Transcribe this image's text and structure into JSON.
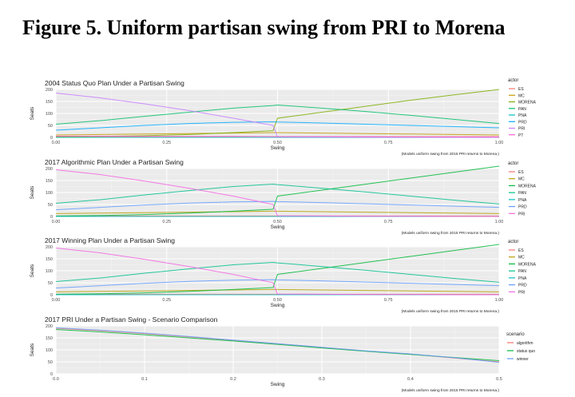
{
  "page": {
    "title": "Figure 5. Uniform partisan swing from PRI to Morena"
  },
  "chart_data": [
    {
      "type": "line",
      "title": "2004 Status Quo Plan Under a Partisan Swing",
      "xlabel": "Swing",
      "ylabel": "Seats",
      "xlim": [
        0,
        1
      ],
      "ylim": [
        0,
        200
      ],
      "xticks": [
        "0.00",
        "0.25",
        "0.50",
        "0.75",
        "1.00"
      ],
      "xtick_values": [
        0,
        0.25,
        0.5,
        0.75,
        1
      ],
      "yticks": [
        0,
        50,
        100,
        150,
        200
      ],
      "caption": "(Models uniform swing from 2015 PRI returns to Morena.)",
      "legend_title": "actor",
      "legend_position": "right",
      "grid": true,
      "x": [
        0,
        0.1,
        0.2,
        0.3,
        0.4,
        0.49,
        0.5,
        0.6,
        0.7,
        0.8,
        0.9,
        1.0
      ],
      "series": [
        {
          "name": "ES",
          "color": "#F8766D",
          "values": [
            3,
            3,
            3,
            3,
            3,
            3,
            3,
            3,
            3,
            3,
            3,
            3
          ]
        },
        {
          "name": "MC",
          "color": "#C49A00",
          "values": [
            10,
            12,
            14,
            16,
            18,
            20,
            20,
            18,
            16,
            14,
            12,
            10
          ]
        },
        {
          "name": "MORENA",
          "color": "#7CAE00",
          "values": [
            2,
            4,
            7,
            12,
            20,
            28,
            80,
            105,
            130,
            155,
            178,
            200
          ]
        },
        {
          "name": "PAN",
          "color": "#00BE67",
          "values": [
            55,
            70,
            88,
            105,
            122,
            133,
            135,
            122,
            108,
            92,
            75,
            58
          ]
        },
        {
          "name": "PNA",
          "color": "#00BFC4",
          "values": [
            0,
            0,
            0,
            0,
            0,
            0,
            0,
            0,
            0,
            0,
            0,
            0
          ]
        },
        {
          "name": "PRD",
          "color": "#00A9FF",
          "values": [
            30,
            40,
            50,
            58,
            63,
            65,
            64,
            60,
            55,
            50,
            45,
            40
          ]
        },
        {
          "name": "PRI",
          "color": "#C77CFF",
          "values": [
            185,
            165,
            140,
            112,
            80,
            50,
            3,
            2,
            1,
            1,
            0,
            0
          ]
        },
        {
          "name": "PT",
          "color": "#FF61CC",
          "values": [
            5,
            5,
            4,
            4,
            4,
            3,
            3,
            3,
            3,
            2,
            2,
            2
          ]
        }
      ]
    },
    {
      "type": "line",
      "title": "2017 Algorithmic Plan Under a Partisan Swing",
      "xlabel": "Swing",
      "ylabel": "Seats",
      "xlim": [
        0,
        1
      ],
      "ylim": [
        0,
        200
      ],
      "xticks": [
        "0.00",
        "0.25",
        "0.50",
        "0.75",
        "1.00"
      ],
      "xtick_values": [
        0,
        0.25,
        0.5,
        0.75,
        1
      ],
      "yticks": [
        0,
        50,
        100,
        150,
        200
      ],
      "caption": "(Models uniform swing from 2015 PRI returns to Morena.)",
      "legend_title": "actor",
      "legend_position": "right",
      "grid": true,
      "x": [
        0,
        0.1,
        0.2,
        0.3,
        0.4,
        0.49,
        0.5,
        0.6,
        0.7,
        0.8,
        0.9,
        1.0
      ],
      "series": [
        {
          "name": "ES",
          "color": "#F8766D",
          "values": [
            2,
            2,
            2,
            2,
            2,
            2,
            2,
            2,
            2,
            2,
            2,
            2
          ]
        },
        {
          "name": "MC",
          "color": "#B79F00",
          "values": [
            12,
            14,
            16,
            18,
            20,
            22,
            22,
            20,
            18,
            16,
            14,
            12
          ]
        },
        {
          "name": "MORENA",
          "color": "#00BA38",
          "values": [
            2,
            4,
            8,
            14,
            22,
            30,
            85,
            110,
            135,
            160,
            185,
            210
          ]
        },
        {
          "name": "PAN",
          "color": "#00C08B",
          "values": [
            55,
            70,
            90,
            108,
            125,
            135,
            133,
            118,
            102,
            85,
            68,
            52
          ]
        },
        {
          "name": "PNA",
          "color": "#00BFC4",
          "values": [
            0,
            0,
            0,
            0,
            0,
            0,
            0,
            0,
            0,
            0,
            0,
            0
          ]
        },
        {
          "name": "PRD",
          "color": "#619CFF",
          "values": [
            28,
            38,
            48,
            56,
            61,
            63,
            62,
            58,
            53,
            48,
            43,
            38
          ]
        },
        {
          "name": "PRI",
          "color": "#F564E3",
          "values": [
            195,
            175,
            148,
            118,
            85,
            50,
            3,
            2,
            1,
            1,
            0,
            0
          ]
        }
      ]
    },
    {
      "type": "line",
      "title": "2017 Winning Plan Under a Partisan Swing",
      "xlabel": "Swing",
      "ylabel": "Seats",
      "xlim": [
        0,
        1
      ],
      "ylim": [
        0,
        200
      ],
      "xticks": [
        "0.00",
        "0.25",
        "0.50",
        "0.75",
        "1.00"
      ],
      "xtick_values": [
        0,
        0.25,
        0.5,
        0.75,
        1
      ],
      "yticks": [
        0,
        50,
        100,
        150,
        200
      ],
      "caption": "(Models uniform swing from 2015 PRI returns to Morena.)",
      "legend_title": "actor",
      "legend_position": "right",
      "grid": true,
      "x": [
        0,
        0.1,
        0.2,
        0.3,
        0.4,
        0.49,
        0.5,
        0.6,
        0.7,
        0.8,
        0.9,
        1.0
      ],
      "series": [
        {
          "name": "ES",
          "color": "#F8766D",
          "values": [
            2,
            2,
            2,
            2,
            2,
            2,
            2,
            2,
            2,
            2,
            2,
            2
          ]
        },
        {
          "name": "MC",
          "color": "#B79F00",
          "values": [
            12,
            14,
            16,
            18,
            20,
            22,
            22,
            20,
            18,
            16,
            14,
            12
          ]
        },
        {
          "name": "MORENA",
          "color": "#00BA38",
          "values": [
            2,
            4,
            8,
            14,
            22,
            30,
            85,
            110,
            135,
            160,
            185,
            210
          ]
        },
        {
          "name": "PAN",
          "color": "#00C08B",
          "values": [
            55,
            70,
            90,
            108,
            125,
            135,
            133,
            118,
            102,
            85,
            68,
            52
          ]
        },
        {
          "name": "PNA",
          "color": "#00BFC4",
          "values": [
            0,
            0,
            0,
            0,
            0,
            0,
            0,
            0,
            0,
            0,
            0,
            0
          ]
        },
        {
          "name": "PRD",
          "color": "#619CFF",
          "values": [
            28,
            38,
            48,
            56,
            61,
            63,
            62,
            58,
            53,
            48,
            43,
            38
          ]
        },
        {
          "name": "PRI",
          "color": "#F564E3",
          "values": [
            195,
            175,
            148,
            118,
            85,
            50,
            3,
            2,
            1,
            1,
            0,
            0
          ]
        }
      ]
    },
    {
      "type": "line",
      "title": "2017 PRI Under a Partisan Swing - Scenario Comparison",
      "xlabel": "Swing",
      "ylabel": "Seats",
      "xlim": [
        0,
        0.5
      ],
      "ylim": [
        0,
        200
      ],
      "xticks": [
        "0.0",
        "0.1",
        "0.2",
        "0.3",
        "0.4",
        "0.5"
      ],
      "xtick_values": [
        0,
        0.1,
        0.2,
        0.3,
        0.4,
        0.5
      ],
      "yticks": [
        0,
        50,
        100,
        150,
        200
      ],
      "caption": "(Models uniform swing from 2015 PRI returns to Morena.)",
      "legend_title": "scenario",
      "legend_position": "right",
      "grid": true,
      "x": [
        0,
        0.05,
        0.1,
        0.15,
        0.2,
        0.25,
        0.3,
        0.35,
        0.4,
        0.45,
        0.5
      ],
      "series": [
        {
          "name": "algorithm",
          "color": "#F8766D",
          "values": [
            190,
            180,
            168,
            154,
            140,
            125,
            110,
            95,
            82,
            66,
            50
          ]
        },
        {
          "name": "status quo",
          "color": "#00BA38",
          "values": [
            185,
            175,
            163,
            150,
            137,
            123,
            108,
            94,
            81,
            68,
            55
          ]
        },
        {
          "name": "winner",
          "color": "#619CFF",
          "values": [
            192,
            182,
            170,
            156,
            141,
            126,
            111,
            96,
            83,
            67,
            48
          ]
        }
      ]
    }
  ]
}
